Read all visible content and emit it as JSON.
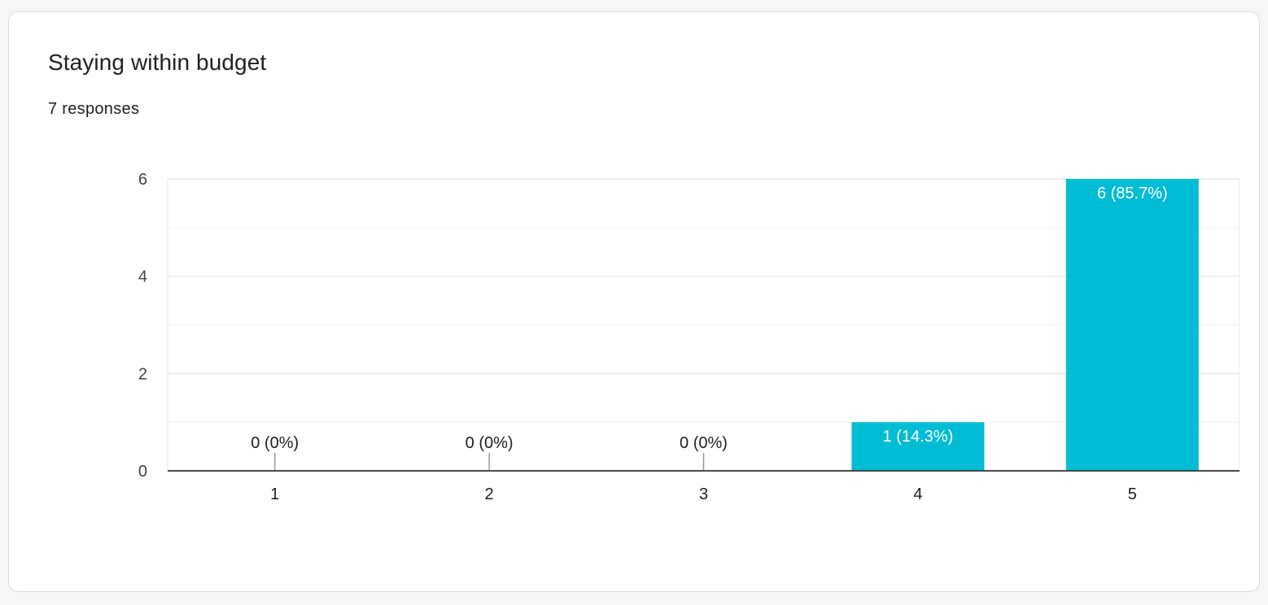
{
  "card": {
    "title": "Staying within budget",
    "responses": "7 responses"
  },
  "chart_data": {
    "type": "bar",
    "title": "",
    "xlabel": "",
    "ylabel": "",
    "categories": [
      "1",
      "2",
      "3",
      "4",
      "5"
    ],
    "values": [
      0,
      0,
      0,
      1,
      6
    ],
    "data_labels": [
      "0 (0%)",
      "0 (0%)",
      "0 (0%)",
      "1 (14.3%)",
      "6 (85.7%)"
    ],
    "ylim": [
      0,
      6
    ],
    "yticks": [
      0,
      2,
      4,
      6
    ],
    "grid": true,
    "bar_color": "#00bcd4",
    "label_color_inside": "#ffffff",
    "label_color_outside": "#202124"
  }
}
